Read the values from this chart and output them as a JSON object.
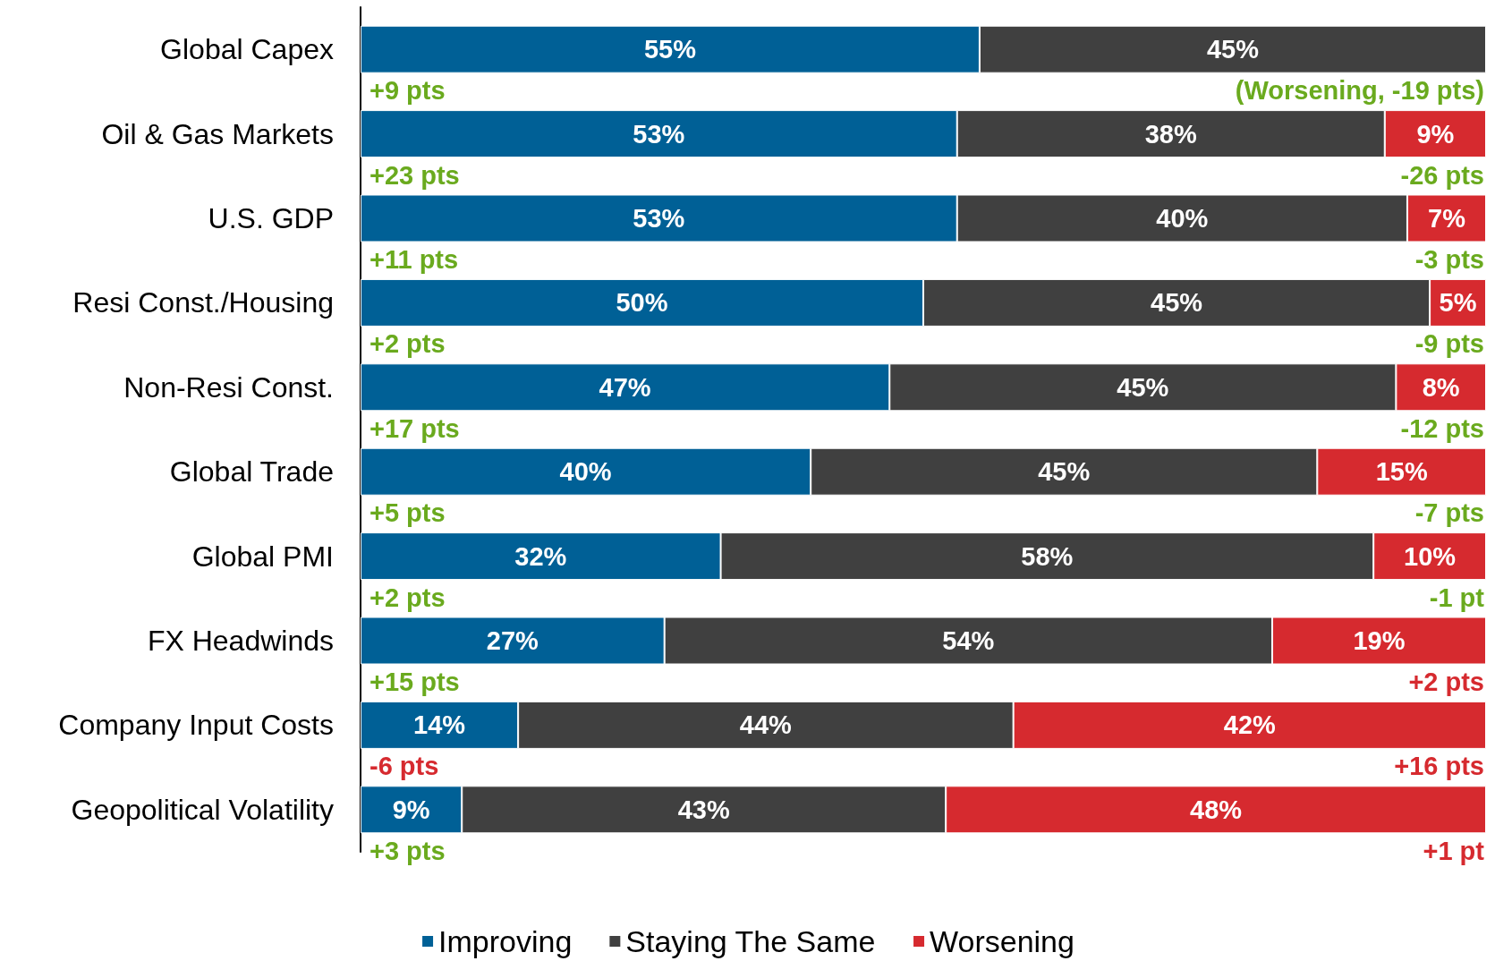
{
  "chart_data": {
    "type": "bar",
    "orientation": "horizontal",
    "stacked": true,
    "legend": "bottom",
    "categories": [
      "Global Capex",
      "Oil & Gas Markets",
      "U.S. GDP",
      "Resi Const./Housing",
      "Non-Resi Const.",
      "Global Trade",
      "Global PMI",
      "FX Headwinds",
      "Company Input Costs",
      "Geopolitical Volatility"
    ],
    "series": [
      {
        "name": "Improving",
        "color": "#006096",
        "values": [
          55,
          53,
          53,
          50,
          47,
          40,
          32,
          27,
          14,
          9
        ],
        "value_labels": [
          "55%",
          "53%",
          "53%",
          "50%",
          "47%",
          "40%",
          "32%",
          "27%",
          "14%",
          "9%"
        ]
      },
      {
        "name": "Staying The Same",
        "color": "#404040",
        "values": [
          45,
          38,
          40,
          45,
          45,
          45,
          58,
          54,
          44,
          43
        ],
        "value_labels": [
          "45%",
          "38%",
          "40%",
          "45%",
          "45%",
          "45%",
          "58%",
          "54%",
          "44%",
          "43%"
        ]
      },
      {
        "name": "Worsening",
        "color": "#d62a2f",
        "values": [
          null,
          9,
          7,
          5,
          8,
          15,
          10,
          19,
          42,
          48
        ],
        "value_labels": [
          null,
          "9%",
          "7%",
          "5%",
          "8%",
          "15%",
          "10%",
          "19%",
          "42%",
          "48%"
        ]
      }
    ],
    "annotations": [
      "+9 pts",
      "(Worsening, -19 pts)",
      "+23 pts",
      "-26 pts",
      "+11 pts",
      "-3 pts",
      "+2 pts",
      "-9 pts",
      "+17 pts",
      "-12 pts",
      "+5 pts",
      "-7 pts",
      "+2 pts",
      "-1 pt",
      "+15 pts",
      "+2 pts",
      "-6 pts",
      "+16 pts",
      "+3 pts",
      "+1 pt"
    ]
  }
}
